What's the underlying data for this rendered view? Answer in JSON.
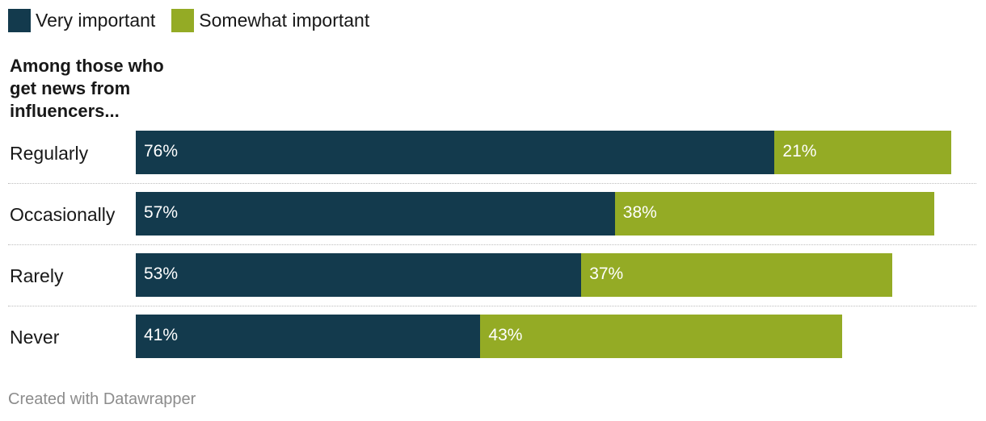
{
  "legend": [
    {
      "label": "Very important",
      "color": "#133a4d"
    },
    {
      "label": "Somewhat important",
      "color": "#94ab25"
    }
  ],
  "chart_data": {
    "type": "bar",
    "orientation": "horizontal",
    "stacked": true,
    "group_title": "Among those who get news from influencers...",
    "categories": [
      "Regularly",
      "Occasionally",
      "Rarely",
      "Never"
    ],
    "series": [
      {
        "name": "Very important",
        "color": "#133a4d",
        "values": [
          76,
          57,
          53,
          41
        ],
        "labels": [
          "76%",
          "57%",
          "53%",
          "41%"
        ]
      },
      {
        "name": "Somewhat important",
        "color": "#94ab25",
        "values": [
          21,
          38,
          37,
          43
        ],
        "labels": [
          "21%",
          "38%",
          "37%",
          "43%"
        ]
      }
    ],
    "xlim": [
      0,
      100
    ]
  },
  "footer": "Created with Datawrapper"
}
